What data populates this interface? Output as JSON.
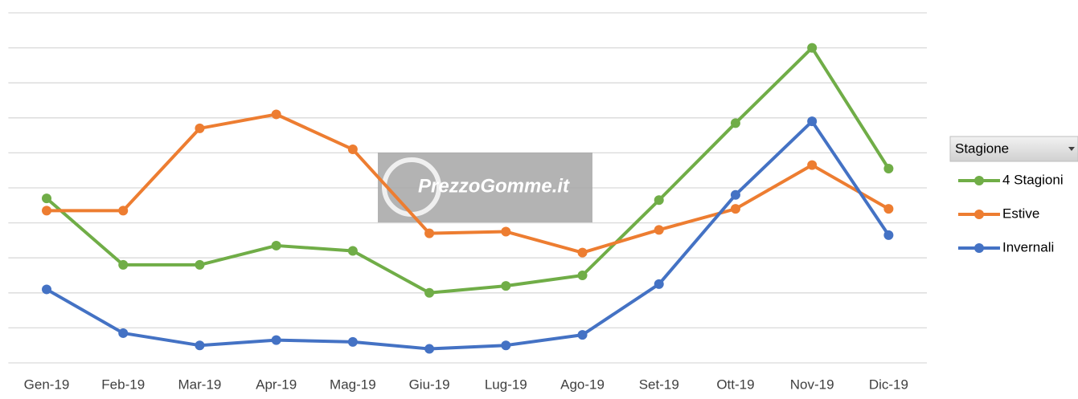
{
  "chart_data": {
    "type": "line",
    "categories": [
      "Gen-19",
      "Feb-19",
      "Mar-19",
      "Apr-19",
      "Mag-19",
      "Giu-19",
      "Lug-19",
      "Ago-19",
      "Set-19",
      "Ott-19",
      "Nov-19",
      "Dic-19"
    ],
    "series": [
      {
        "name": "4 Stagioni",
        "color": "#70ad47",
        "values": [
          4.7,
          2.8,
          2.8,
          3.35,
          3.2,
          2.0,
          2.2,
          2.5,
          4.65,
          6.85,
          9.0,
          5.55
        ]
      },
      {
        "name": "Estive",
        "color": "#ed7d31",
        "values": [
          4.35,
          4.35,
          6.7,
          7.1,
          6.1,
          3.7,
          3.75,
          3.15,
          3.8,
          4.4,
          5.65,
          4.4
        ]
      },
      {
        "name": "Invernali",
        "color": "#4472c4",
        "values": [
          2.1,
          0.85,
          0.5,
          0.65,
          0.6,
          0.4,
          0.5,
          0.8,
          2.25,
          4.8,
          6.9,
          3.65
        ]
      }
    ],
    "ylim": [
      0,
      10
    ],
    "yticks": [
      0,
      1,
      2,
      3,
      4,
      5,
      6,
      7,
      8,
      9,
      10
    ],
    "grid": true,
    "legend_title": "Stagione",
    "watermark": "PrezzoGomme.it"
  }
}
